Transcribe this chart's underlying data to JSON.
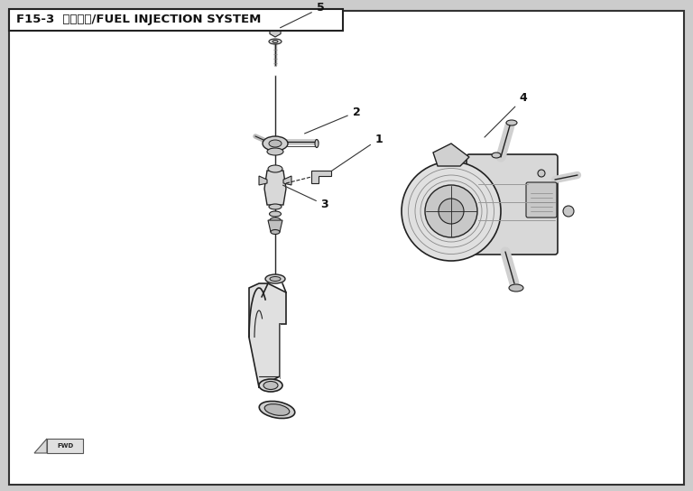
{
  "title": "F15-3  喷油系统/FUEL INJECTION SYSTEM",
  "bg_color": "#ffffff",
  "border_color": "#333333",
  "fig_bg": "#cccccc",
  "inner_bg": "#ffffff",
  "line_color": "#222222",
  "part_color": "#e8e8e8",
  "shadow_color": "#bbbbbb",
  "outer_border": [
    0.013,
    0.013,
    0.974,
    0.965
  ]
}
